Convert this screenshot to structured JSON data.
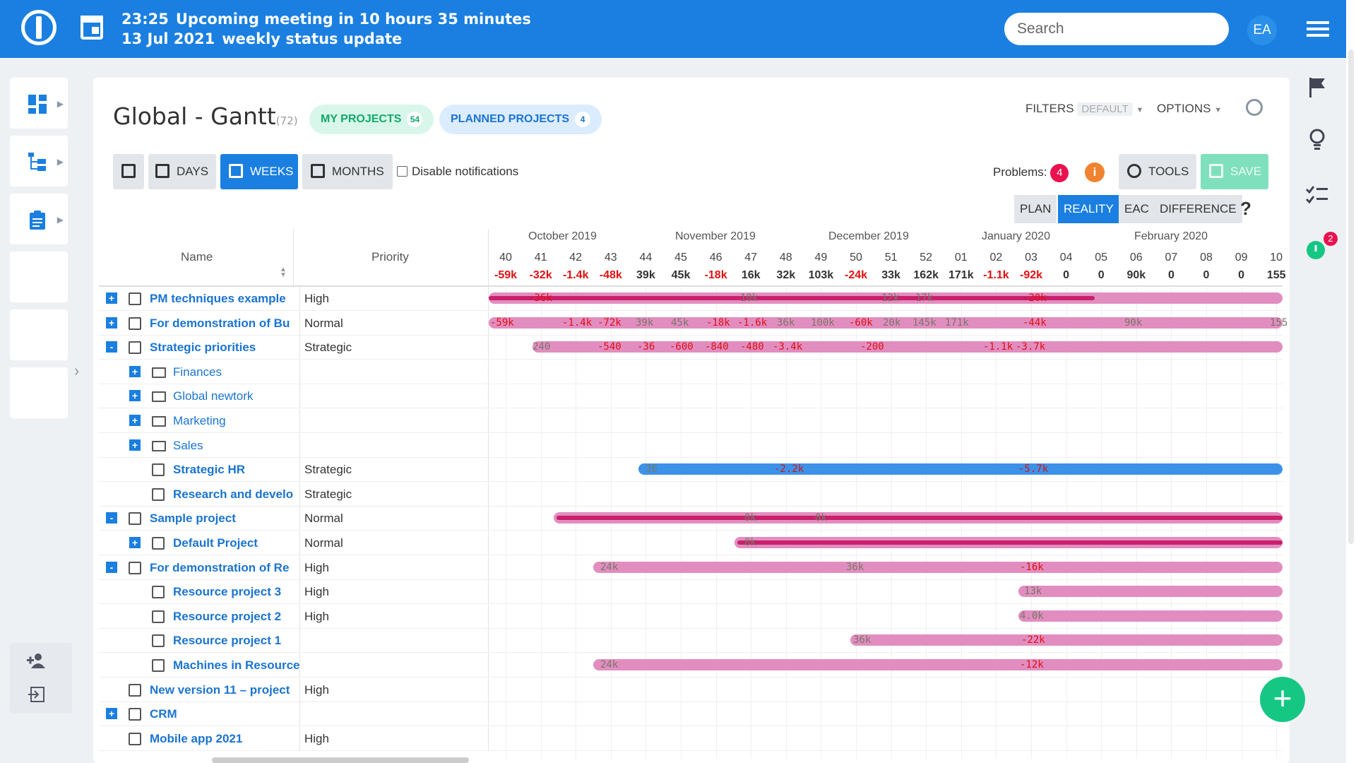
{
  "topbar": {
    "time": "23:25",
    "meeting": "Upcoming meeting in 10 hours 35 minutes",
    "date": "13 Jul 2021",
    "event": "weekly status update",
    "search_placeholder": "Search",
    "avatar": "EA"
  },
  "page": {
    "title": "Global - Gantt",
    "count": "(72)",
    "my_projects": "MY PROJECTS",
    "my_projects_count": "54",
    "planned_projects": "PLANNED PROJECTS",
    "planned_projects_count": "4",
    "filters": "FILTERS",
    "filters_default": "DEFAULT",
    "options": "OPTIONS"
  },
  "toolbar": {
    "days": "DAYS",
    "weeks": "WEEKS",
    "months": "MONTHS",
    "disable_notifications": "Disable notifications",
    "problems_label": "Problems:",
    "problems_count": "4",
    "tools": "TOOLS",
    "save": "SAVE"
  },
  "views": {
    "plan": "PLAN",
    "reality": "REALITY",
    "eac": "EAC",
    "difference": "DIFFERENCE",
    "help": "?"
  },
  "columns": {
    "name": "Name",
    "priority": "Priority"
  },
  "months": [
    "October 2019",
    "November 2019",
    "December 2019",
    "January 2020",
    "February 2020"
  ],
  "weeks": [
    "40",
    "41",
    "42",
    "43",
    "44",
    "45",
    "46",
    "47",
    "48",
    "49",
    "50",
    "51",
    "52",
    "01",
    "02",
    "03",
    "04",
    "05",
    "06",
    "07",
    "08",
    "09",
    "10"
  ],
  "values": [
    "-59k",
    "-32k",
    "-1.4k",
    "-48k",
    "39k",
    "45k",
    "-18k",
    "16k",
    "32k",
    "103k",
    "-24k",
    "33k",
    "162k",
    "171k",
    "-1.1k",
    "-92k",
    "0",
    "0",
    "90k",
    "0",
    "0",
    "0",
    "155"
  ],
  "rows": [
    {
      "name": "PM techniques example",
      "priority": "High"
    },
    {
      "name": "For demonstration of Bu",
      "priority": "Normal"
    },
    {
      "name": "Strategic priorities",
      "priority": "Strategic"
    },
    {
      "name": "Finances",
      "priority": ""
    },
    {
      "name": "Global newtork",
      "priority": ""
    },
    {
      "name": "Marketing",
      "priority": ""
    },
    {
      "name": "Sales",
      "priority": ""
    },
    {
      "name": "Strategic HR",
      "priority": "Strategic"
    },
    {
      "name": "Research and develo",
      "priority": "Strategic"
    },
    {
      "name": "Sample project",
      "priority": "Normal"
    },
    {
      "name": "Default Project",
      "priority": "Normal"
    },
    {
      "name": "For demonstration of Re",
      "priority": "High"
    },
    {
      "name": "Resource project 3",
      "priority": "High"
    },
    {
      "name": "Resource project 2",
      "priority": "High"
    },
    {
      "name": "Resource project 1",
      "priority": ""
    },
    {
      "name": "Machines in Resource",
      "priority": ""
    },
    {
      "name": "New version 11 – project",
      "priority": "High"
    },
    {
      "name": "CRM",
      "priority": ""
    },
    {
      "name": "Mobile app 2021",
      "priority": "High"
    }
  ],
  "bar_labels": {
    "r0": [
      "-36k",
      "10k",
      "12k",
      "17k",
      "-20k"
    ],
    "r1": [
      "-59k",
      "-1.4k",
      "-72k",
      "39k",
      "45k",
      "-18k",
      "-1.6k",
      "36k",
      "100k",
      "-60k",
      "20k",
      "145k",
      "171k",
      "-44k",
      "90k",
      "155"
    ],
    "r2": [
      "240",
      "-540",
      "-36",
      "-600",
      "-840",
      "-480",
      "-3.4k",
      "-200",
      "-1.1k",
      "-3.7k"
    ],
    "r7": [
      "36",
      "-2.2k",
      "-5.7k"
    ],
    "r9": [
      "0k",
      "0k"
    ],
    "r10": [
      "0k"
    ],
    "r11": [
      "24k",
      "36k",
      "-16k"
    ],
    "r12": [
      "13k"
    ],
    "r13": [
      "4.0k"
    ],
    "r14": [
      "36k",
      "-22k"
    ],
    "r15": [
      "24k",
      "-12k"
    ]
  },
  "badges": {
    "timer": "2"
  },
  "fab": "+"
}
